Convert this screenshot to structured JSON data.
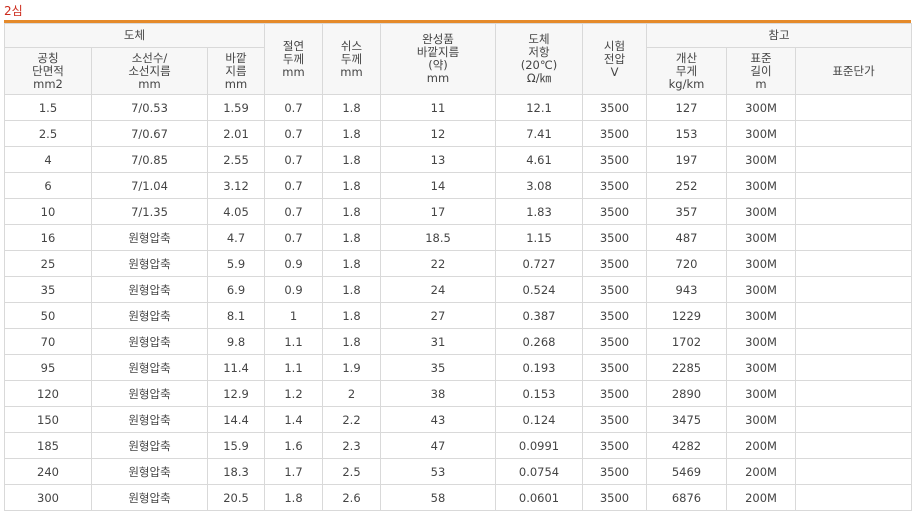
{
  "title": "2심",
  "header": {
    "conductor": "도체",
    "insulation": [
      "절연",
      "두께",
      "mm"
    ],
    "sheath": [
      "쉬스",
      "두께",
      "mm"
    ],
    "finished_od": [
      "완성품",
      "바깥지름",
      "(약)",
      "mm"
    ],
    "resistance": [
      "도체",
      "저항",
      "(20℃)",
      "Ω/㎞"
    ],
    "test_voltage": [
      "시험",
      "전압",
      "V"
    ],
    "reference": "참고",
    "nominal_area": [
      "공칭",
      "단면적",
      "mm2"
    ],
    "strands": [
      "소선수/",
      "소선지름",
      "mm"
    ],
    "outer_dia": [
      "바깥",
      "지름",
      "mm"
    ],
    "weight": [
      "개산",
      "무게",
      "kg/km"
    ],
    "std_length": [
      "표준",
      "길이",
      "m"
    ],
    "std_price": "표준단가"
  },
  "rows": [
    [
      "1.5",
      "7/0.53",
      "1.59",
      "0.7",
      "1.8",
      "11",
      "12.1",
      "3500",
      "127",
      "300M",
      ""
    ],
    [
      "2.5",
      "7/0.67",
      "2.01",
      "0.7",
      "1.8",
      "12",
      "7.41",
      "3500",
      "153",
      "300M",
      ""
    ],
    [
      "4",
      "7/0.85",
      "2.55",
      "0.7",
      "1.8",
      "13",
      "4.61",
      "3500",
      "197",
      "300M",
      ""
    ],
    [
      "6",
      "7/1.04",
      "3.12",
      "0.7",
      "1.8",
      "14",
      "3.08",
      "3500",
      "252",
      "300M",
      ""
    ],
    [
      "10",
      "7/1.35",
      "4.05",
      "0.7",
      "1.8",
      "17",
      "1.83",
      "3500",
      "357",
      "300M",
      ""
    ],
    [
      "16",
      "원형압축",
      "4.7",
      "0.7",
      "1.8",
      "18.5",
      "1.15",
      "3500",
      "487",
      "300M",
      ""
    ],
    [
      "25",
      "원형압축",
      "5.9",
      "0.9",
      "1.8",
      "22",
      "0.727",
      "3500",
      "720",
      "300M",
      ""
    ],
    [
      "35",
      "원형압축",
      "6.9",
      "0.9",
      "1.8",
      "24",
      "0.524",
      "3500",
      "943",
      "300M",
      ""
    ],
    [
      "50",
      "원형압축",
      "8.1",
      "1",
      "1.8",
      "27",
      "0.387",
      "3500",
      "1229",
      "300M",
      ""
    ],
    [
      "70",
      "원형압축",
      "9.8",
      "1.1",
      "1.8",
      "31",
      "0.268",
      "3500",
      "1702",
      "300M",
      ""
    ],
    [
      "95",
      "원형압축",
      "11.4",
      "1.1",
      "1.9",
      "35",
      "0.193",
      "3500",
      "2285",
      "300M",
      ""
    ],
    [
      "120",
      "원형압축",
      "12.9",
      "1.2",
      "2",
      "38",
      "0.153",
      "3500",
      "2890",
      "300M",
      ""
    ],
    [
      "150",
      "원형압축",
      "14.4",
      "1.4",
      "2.2",
      "43",
      "0.124",
      "3500",
      "3475",
      "300M",
      ""
    ],
    [
      "185",
      "원형압축",
      "15.9",
      "1.6",
      "2.3",
      "47",
      "0.0991",
      "3500",
      "4282",
      "200M",
      ""
    ],
    [
      "240",
      "원형압축",
      "18.3",
      "1.7",
      "2.5",
      "53",
      "0.0754",
      "3500",
      "5469",
      "200M",
      ""
    ],
    [
      "300",
      "원형압축",
      "20.5",
      "1.8",
      "2.6",
      "58",
      "0.0601",
      "3500",
      "6876",
      "200M",
      ""
    ]
  ],
  "colors": {
    "title": "#cc2a1c",
    "accent_bar": "#e58a2a",
    "header_bg": "#f7f7f7",
    "border": "#d9d9d9"
  }
}
